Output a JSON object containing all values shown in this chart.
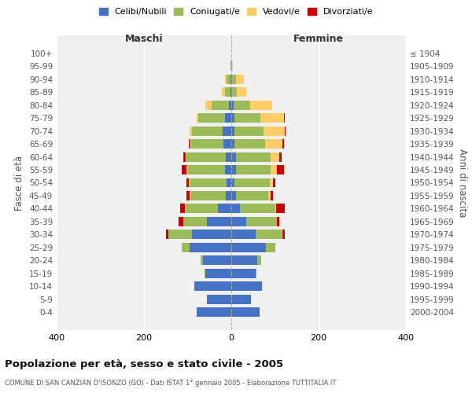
{
  "age_groups": [
    "0-4",
    "5-9",
    "10-14",
    "15-19",
    "20-24",
    "25-29",
    "30-34",
    "35-39",
    "40-44",
    "45-49",
    "50-54",
    "55-59",
    "60-64",
    "65-69",
    "70-74",
    "75-79",
    "80-84",
    "85-89",
    "90-94",
    "95-99",
    "100+"
  ],
  "birth_years": [
    "2000-2004",
    "1995-1999",
    "1990-1994",
    "1985-1989",
    "1980-1984",
    "1975-1979",
    "1970-1974",
    "1965-1969",
    "1960-1964",
    "1955-1959",
    "1950-1954",
    "1945-1949",
    "1940-1944",
    "1935-1939",
    "1930-1934",
    "1925-1929",
    "1920-1924",
    "1915-1919",
    "1910-1914",
    "1905-1909",
    "≤ 1904"
  ],
  "males": {
    "celibi": [
      80,
      55,
      85,
      60,
      65,
      95,
      90,
      55,
      30,
      12,
      10,
      15,
      12,
      18,
      20,
      15,
      5,
      2,
      2,
      0,
      0
    ],
    "coniugati": [
      0,
      0,
      0,
      2,
      5,
      18,
      55,
      55,
      75,
      80,
      85,
      85,
      90,
      75,
      70,
      60,
      40,
      12,
      8,
      2,
      0
    ],
    "vedovi": [
      0,
      0,
      0,
      0,
      0,
      0,
      0,
      0,
      2,
      3,
      3,
      3,
      3,
      3,
      5,
      5,
      15,
      8,
      5,
      0,
      0
    ],
    "divorziati": [
      0,
      0,
      0,
      0,
      0,
      0,
      5,
      10,
      10,
      8,
      5,
      10,
      5,
      2,
      0,
      0,
      0,
      0,
      0,
      0,
      0
    ]
  },
  "females": {
    "nubili": [
      65,
      45,
      70,
      55,
      60,
      80,
      55,
      35,
      20,
      10,
      8,
      10,
      10,
      8,
      8,
      8,
      5,
      2,
      2,
      0,
      0
    ],
    "coniugate": [
      0,
      0,
      0,
      2,
      8,
      20,
      60,
      70,
      80,
      75,
      80,
      80,
      80,
      70,
      65,
      58,
      38,
      10,
      8,
      2,
      0
    ],
    "vedove": [
      0,
      0,
      0,
      0,
      0,
      0,
      2,
      0,
      2,
      5,
      8,
      15,
      20,
      40,
      50,
      55,
      50,
      22,
      18,
      2,
      0
    ],
    "divorziate": [
      0,
      0,
      0,
      0,
      0,
      0,
      5,
      5,
      20,
      5,
      5,
      15,
      5,
      2,
      2,
      2,
      0,
      0,
      0,
      0,
      0
    ]
  },
  "colors": {
    "celibi": "#4472C4",
    "coniugati": "#9BBB59",
    "vedovi": "#FFCC66",
    "divorziati": "#CC0000"
  },
  "title": "Popolazione per età, sesso e stato civile - 2005",
  "subtitle": "COMUNE DI SAN CANZIAN D'ISONZO (GO) - Dati ISTAT 1° gennaio 2005 - Elaborazione TUTTITALIA.IT",
  "xlabel_left": "Maschi",
  "xlabel_right": "Femmine",
  "ylabel_left": "Fasce di età",
  "ylabel_right": "Anni di nascita",
  "xlim": 400,
  "legend_labels": [
    "Celibi/Nubili",
    "Coniugati/e",
    "Vedovi/e",
    "Divorziati/e"
  ],
  "bg_color": "#FFFFFF",
  "plot_bg_color": "#F0F0F0"
}
